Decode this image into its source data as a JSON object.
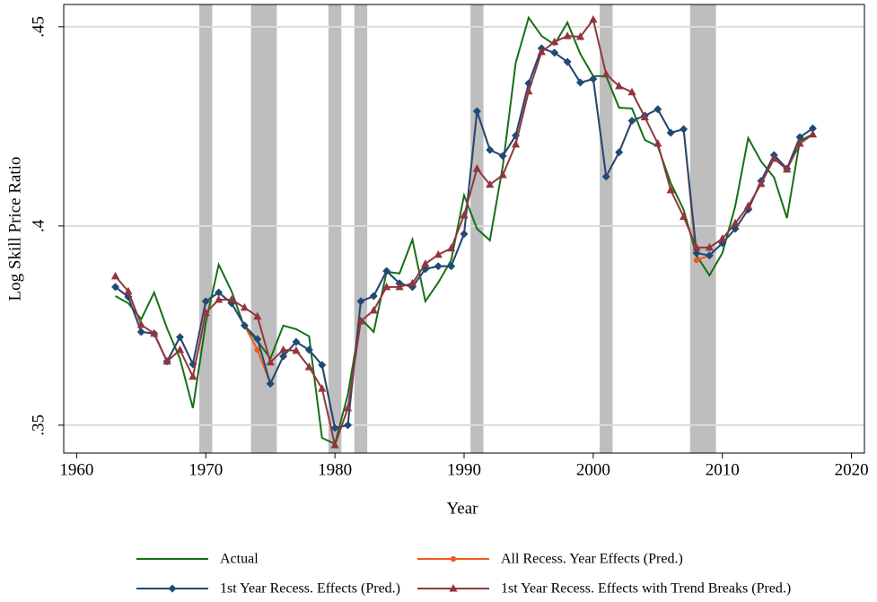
{
  "chart_data": {
    "type": "line",
    "x_label": "Year",
    "y_label": "Log Skill Price Ratio",
    "xlim": [
      1959,
      2021
    ],
    "ylim": [
      0.343,
      0.4556
    ],
    "xticks": [
      1960,
      1970,
      1980,
      1990,
      2000,
      2010,
      2020
    ],
    "yticks": [
      {
        "value": 0.35,
        "label": ".35"
      },
      {
        "value": 0.4,
        "label": ".4"
      },
      {
        "value": 0.45,
        "label": ".45"
      }
    ],
    "grid": true,
    "legend": "bottom",
    "recessions": [
      [
        1969.5,
        1970.5
      ],
      [
        1973.5,
        1975.5
      ],
      [
        1979.5,
        1980.5
      ],
      [
        1981.5,
        1982.5
      ],
      [
        1990.5,
        1991.5
      ],
      [
        2000.5,
        2001.5
      ],
      [
        2007.5,
        2009.5
      ]
    ],
    "recession_color": "#bebebe",
    "x": [
      1963,
      1964,
      1965,
      1966,
      1967,
      1968,
      1969,
      1970,
      1971,
      1972,
      1973,
      1974,
      1975,
      1976,
      1977,
      1978,
      1979,
      1980,
      1981,
      1982,
      1983,
      1984,
      1985,
      1986,
      1987,
      1988,
      1989,
      1990,
      1991,
      1992,
      1993,
      1994,
      1995,
      1996,
      1997,
      1998,
      1999,
      2000,
      2001,
      2002,
      2003,
      2004,
      2005,
      2006,
      2007,
      2008,
      2009,
      2010,
      2011,
      2012,
      2013,
      2014,
      2015,
      2016,
      2017
    ],
    "series": [
      {
        "name": "Actual",
        "color": "#157015",
        "marker": "none",
        "values": [
          0.3824,
          0.3806,
          0.3766,
          0.3833,
          0.3743,
          0.3667,
          0.3543,
          0.3757,
          0.3903,
          0.3836,
          0.3745,
          0.3712,
          0.3667,
          0.375,
          0.3741,
          0.3723,
          0.3468,
          0.3453,
          0.3577,
          0.3768,
          0.3734,
          0.3885,
          0.3881,
          0.3966,
          0.3811,
          0.3858,
          0.3914,
          0.4077,
          0.3993,
          0.3964,
          0.4151,
          0.441,
          0.4523,
          0.4477,
          0.4455,
          0.4511,
          0.4432,
          0.4376,
          0.4376,
          0.4297,
          0.4295,
          0.4216,
          0.42,
          0.4108,
          0.4041,
          0.3926,
          0.3876,
          0.3932,
          0.405,
          0.4221,
          0.4162,
          0.4122,
          0.402,
          0.4214,
          0.423
        ]
      },
      {
        "name": "All Recess. Year Effects (Pred.)",
        "color": "#f05a1a",
        "marker": "circle",
        "values": [
          0.3847,
          0.3822,
          0.3734,
          0.373,
          0.366,
          0.3721,
          0.3653,
          0.3811,
          0.3833,
          0.3806,
          0.375,
          0.3689,
          0.3604,
          0.3673,
          0.3709,
          0.3689,
          0.3651,
          0.3493,
          0.35,
          0.3811,
          0.3824,
          0.3887,
          0.3856,
          0.3847,
          0.3892,
          0.3899,
          0.3899,
          0.398,
          0.4288,
          0.4191,
          0.4176,
          0.4227,
          0.4358,
          0.4446,
          0.4435,
          0.4412,
          0.436,
          0.4369,
          0.4124,
          0.4185,
          0.4264,
          0.4277,
          0.4293,
          0.4234,
          0.4243,
          0.3914,
          0.3926,
          0.3957,
          0.3993,
          0.4041,
          0.4113,
          0.4178,
          0.4144,
          0.4223,
          0.4245
        ]
      },
      {
        "name": "1st Year Recess. Effects (Pred.)",
        "color": "#1f4a78",
        "marker": "diamond",
        "values": [
          0.3847,
          0.3822,
          0.3734,
          0.373,
          0.366,
          0.3721,
          0.3653,
          0.3811,
          0.3833,
          0.3806,
          0.375,
          0.3716,
          0.3604,
          0.3673,
          0.3709,
          0.3689,
          0.3651,
          0.3493,
          0.35,
          0.3811,
          0.3824,
          0.3887,
          0.3856,
          0.3847,
          0.3892,
          0.3899,
          0.3899,
          0.398,
          0.4288,
          0.4191,
          0.4176,
          0.4227,
          0.4358,
          0.4446,
          0.4435,
          0.4412,
          0.436,
          0.4369,
          0.4124,
          0.4185,
          0.4264,
          0.4277,
          0.4293,
          0.4234,
          0.4243,
          0.3932,
          0.3926,
          0.3957,
          0.3993,
          0.4041,
          0.4113,
          0.4178,
          0.4144,
          0.4223,
          0.4245
        ]
      },
      {
        "name": "1st Year Recess. Effects with Trend Breaks (Pred.)",
        "color": "#93353d",
        "marker": "triangle",
        "values": [
          0.3874,
          0.3836,
          0.3752,
          0.373,
          0.366,
          0.3689,
          0.3622,
          0.3782,
          0.3815,
          0.3815,
          0.3795,
          0.3773,
          0.3658,
          0.3689,
          0.3687,
          0.3646,
          0.3592,
          0.345,
          0.3543,
          0.3761,
          0.3788,
          0.3847,
          0.3847,
          0.3856,
          0.3905,
          0.3928,
          0.3944,
          0.4027,
          0.4144,
          0.4104,
          0.4128,
          0.4205,
          0.4338,
          0.4437,
          0.4462,
          0.4477,
          0.4475,
          0.4518,
          0.4381,
          0.4351,
          0.4336,
          0.4273,
          0.4207,
          0.409,
          0.4023,
          0.3946,
          0.3946,
          0.3968,
          0.4007,
          0.405,
          0.4106,
          0.4169,
          0.4142,
          0.4207,
          0.423
        ]
      }
    ]
  }
}
